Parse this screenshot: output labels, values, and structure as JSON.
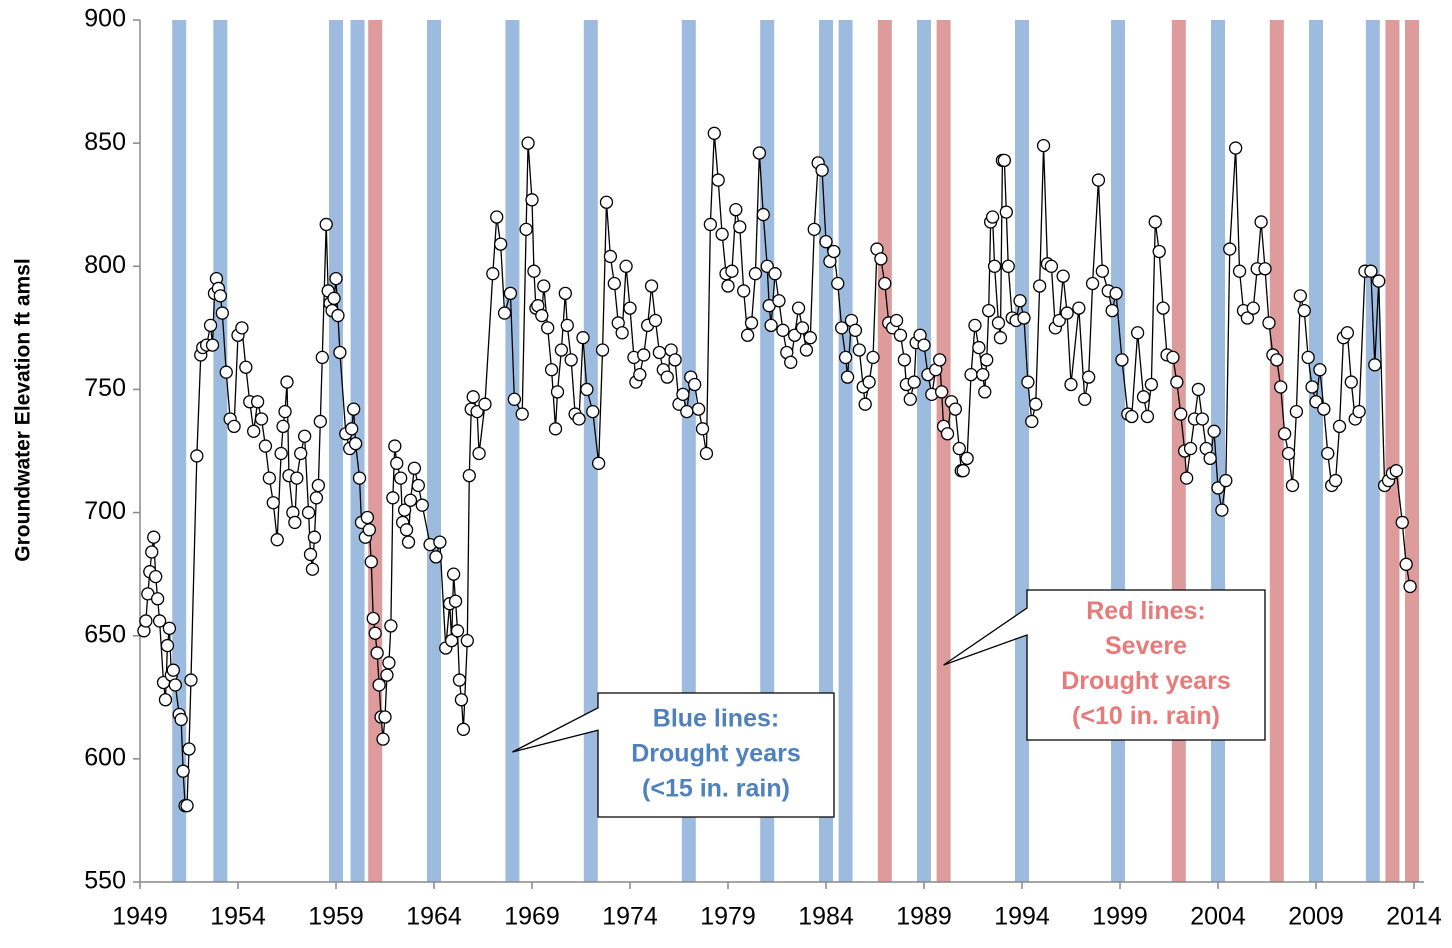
{
  "chart_data": {
    "type": "line",
    "y_label": "Groundwater Elevation ft amsl",
    "xlim": [
      1949,
      2014
    ],
    "xticks": [
      1949,
      1954,
      1959,
      1964,
      1969,
      1974,
      1979,
      1984,
      1989,
      1994,
      1999,
      2004,
      2009,
      2014
    ],
    "ylim": [
      550,
      900
    ],
    "yticks": [
      550,
      600,
      650,
      700,
      750,
      800,
      850,
      900
    ],
    "color": "#000000",
    "drought_color": "#9dbbdf",
    "severe_drought_color": "#dd9b9b",
    "drought_years": [
      1951.0,
      1953.1,
      1959.0,
      1960.1,
      1964.0,
      1968.0,
      1972.0,
      1977.0,
      1981.0,
      1984.0,
      1985.0,
      1989.0,
      1994.0,
      1998.9,
      2004.0,
      2009.0,
      2011.9
    ],
    "severe_drought_years": [
      1961.0,
      1987.0,
      1990.0,
      2002.0,
      2007.0,
      2012.9,
      2013.9
    ],
    "annotations": [
      {
        "lines": [
          "Blue lines:",
          "Drought years",
          "(<15 in. rain)"
        ],
        "color": "#4f81bd"
      },
      {
        "lines": [
          "Red lines:",
          "Severe",
          "Drought years",
          "(<10 in. rain)"
        ],
        "color": "#e87a7a"
      }
    ],
    "x": [
      1949.2,
      1949.3,
      1949.4,
      1949.5,
      1949.6,
      1949.7,
      1949.8,
      1949.9,
      1950.0,
      1950.2,
      1950.3,
      1950.4,
      1950.5,
      1950.6,
      1950.7,
      1950.8,
      1951.0,
      1951.1,
      1951.2,
      1951.3,
      1951.4,
      1951.5,
      1951.6,
      1951.9,
      1952.1,
      1952.2,
      1952.4,
      1952.6,
      1952.7,
      1952.8,
      1952.9,
      1953.0,
      1953.1,
      1953.2,
      1953.4,
      1953.6,
      1953.8,
      1954.0,
      1954.2,
      1954.4,
      1954.6,
      1954.8,
      1955.0,
      1955.2,
      1955.4,
      1955.6,
      1955.8,
      1956.0,
      1956.2,
      1956.3,
      1956.4,
      1956.5,
      1956.6,
      1956.8,
      1956.9,
      1957.0,
      1957.2,
      1957.4,
      1957.6,
      1957.7,
      1957.8,
      1957.9,
      1958.0,
      1958.1,
      1958.2,
      1958.3,
      1958.5,
      1958.6,
      1958.7,
      1958.8,
      1958.9,
      1959.0,
      1959.1,
      1959.2,
      1959.5,
      1959.7,
      1959.8,
      1959.9,
      1960.0,
      1960.2,
      1960.3,
      1960.5,
      1960.6,
      1960.7,
      1960.8,
      1960.9,
      1961.0,
      1961.1,
      1961.2,
      1961.3,
      1961.4,
      1961.5,
      1961.6,
      1961.7,
      1961.8,
      1961.9,
      1962.0,
      1962.1,
      1962.3,
      1962.4,
      1962.5,
      1962.6,
      1962.7,
      1962.8,
      1963.0,
      1963.2,
      1963.4,
      1963.8,
      1964.1,
      1964.3,
      1964.6,
      1964.8,
      1964.9,
      1965.0,
      1965.1,
      1965.2,
      1965.3,
      1965.4,
      1965.5,
      1965.7,
      1965.8,
      1965.9,
      1966.0,
      1966.2,
      1966.3,
      1966.6,
      1967.0,
      1967.2,
      1967.4,
      1967.6,
      1967.9,
      1968.1,
      1968.5,
      1968.7,
      1968.8,
      1969.0,
      1969.1,
      1969.2,
      1969.3,
      1969.5,
      1969.6,
      1969.8,
      1970.0,
      1970.2,
      1970.3,
      1970.5,
      1970.7,
      1970.8,
      1971.0,
      1971.2,
      1971.4,
      1971.6,
      1971.8,
      1972.1,
      1972.4,
      1972.6,
      1972.8,
      1973.0,
      1973.2,
      1973.4,
      1973.6,
      1973.8,
      1974.0,
      1974.2,
      1974.3,
      1974.5,
      1974.7,
      1974.9,
      1975.1,
      1975.3,
      1975.5,
      1975.7,
      1975.9,
      1976.1,
      1976.3,
      1976.5,
      1976.7,
      1976.9,
      1977.1,
      1977.3,
      1977.5,
      1977.7,
      1977.9,
      1978.1,
      1978.3,
      1978.5,
      1978.7,
      1978.9,
      1979.0,
      1979.2,
      1979.4,
      1979.6,
      1979.8,
      1980.0,
      1980.2,
      1980.4,
      1980.6,
      1980.8,
      1981.0,
      1981.1,
      1981.2,
      1981.4,
      1981.6,
      1981.8,
      1982.0,
      1982.2,
      1982.4,
      1982.6,
      1982.8,
      1983.0,
      1983.2,
      1983.4,
      1983.6,
      1983.8,
      1984.0,
      1984.2,
      1984.4,
      1984.6,
      1984.8,
      1985.0,
      1985.1,
      1985.3,
      1985.5,
      1985.7,
      1985.9,
      1986.0,
      1986.2,
      1986.4,
      1986.6,
      1986.8,
      1987.0,
      1987.2,
      1987.4,
      1987.6,
      1987.8,
      1988.0,
      1988.1,
      1988.3,
      1988.5,
      1988.6,
      1988.8,
      1989.0,
      1989.2,
      1989.4,
      1989.6,
      1989.8,
      1989.9,
      1990.0,
      1990.2,
      1990.4,
      1990.6,
      1990.8,
      1990.9,
      1991.0,
      1991.2,
      1991.4,
      1991.6,
      1991.8,
      1992.0,
      1992.1,
      1992.2,
      1992.3,
      1992.4,
      1992.5,
      1992.6,
      1992.8,
      1992.9,
      1993.0,
      1993.1,
      1993.2,
      1993.3,
      1993.5,
      1993.7,
      1993.9,
      1994.1,
      1994.3,
      1994.5,
      1994.7,
      1994.9,
      1995.1,
      1995.3,
      1995.5,
      1995.7,
      1995.9,
      1996.1,
      1996.3,
      1996.5,
      1996.9,
      1997.2,
      1997.4,
      1997.6,
      1997.9,
      1998.1,
      1998.4,
      1998.6,
      1998.8,
      1999.1,
      1999.4,
      1999.6,
      1999.9,
      2000.2,
      2000.4,
      2000.6,
      2000.8,
      2001.0,
      2001.2,
      2001.4,
      2001.7,
      2001.9,
      2002.1,
      2002.3,
      2002.4,
      2002.6,
      2002.8,
      2003.0,
      2003.2,
      2003.4,
      2003.6,
      2003.8,
      2004.0,
      2004.2,
      2004.4,
      2004.6,
      2004.9,
      2005.1,
      2005.3,
      2005.5,
      2005.8,
      2006.0,
      2006.2,
      2006.4,
      2006.6,
      2006.8,
      2007.0,
      2007.2,
      2007.4,
      2007.6,
      2007.8,
      2008.0,
      2008.2,
      2008.4,
      2008.6,
      2008.8,
      2009.0,
      2009.2,
      2009.4,
      2009.6,
      2009.8,
      2010.0,
      2010.2,
      2010.4,
      2010.6,
      2010.8,
      2011.0,
      2011.2,
      2011.5,
      2011.8,
      2012.0,
      2012.2,
      2012.5,
      2012.7,
      2012.9,
      2013.1,
      2013.4,
      2013.6,
      2013.8
    ],
    "values": [
      652,
      656,
      667,
      676,
      684,
      690,
      674,
      665,
      656,
      631,
      624,
      646,
      653,
      634,
      636,
      630,
      618,
      616,
      595,
      581,
      581,
      604,
      632,
      723,
      764,
      767,
      768,
      776,
      768,
      789,
      795,
      791,
      788,
      781,
      757,
      738,
      735,
      772,
      775,
      759,
      745,
      733,
      745,
      738,
      727,
      714,
      704,
      689,
      724,
      735,
      741,
      753,
      715,
      700,
      696,
      714,
      724,
      731,
      700,
      683,
      677,
      690,
      706,
      711,
      737,
      763,
      817,
      790,
      785,
      782,
      787,
      795,
      780,
      765,
      732,
      726,
      734,
      742,
      728,
      714,
      696,
      690,
      698,
      693,
      680,
      657,
      651,
      643,
      630,
      617,
      608,
      617,
      634,
      639,
      654,
      706,
      727,
      720,
      714,
      696,
      701,
      693,
      688,
      705,
      718,
      711,
      703,
      687,
      682,
      688,
      645,
      663,
      648,
      675,
      664,
      652,
      632,
      624,
      612,
      648,
      715,
      742,
      747,
      741,
      724,
      744,
      797,
      820,
      809,
      781,
      789,
      746,
      740,
      815,
      850,
      827,
      798,
      783,
      784,
      780,
      792,
      775,
      758,
      734,
      749,
      766,
      789,
      776,
      762,
      740,
      738,
      771,
      750,
      741,
      720,
      766,
      826,
      804,
      793,
      777,
      773,
      800,
      783,
      763,
      753,
      756,
      764,
      776,
      792,
      778,
      765,
      758,
      755,
      766,
      762,
      744,
      748,
      741,
      755,
      752,
      742,
      734,
      724,
      817,
      854,
      835,
      813,
      797,
      792,
      798,
      823,
      816,
      790,
      772,
      777,
      797,
      846,
      821,
      800,
      784,
      776,
      797,
      786,
      774,
      765,
      761,
      772,
      783,
      775,
      766,
      771,
      815,
      842,
      839,
      810,
      802,
      806,
      793,
      775,
      763,
      755,
      778,
      774,
      766,
      751,
      744,
      753,
      763,
      807,
      803,
      793,
      777,
      775,
      778,
      772,
      762,
      752,
      746,
      753,
      769,
      772,
      768,
      756,
      748,
      758,
      762,
      749,
      735,
      732,
      745,
      742,
      726,
      717,
      717,
      722,
      756,
      776,
      767,
      756,
      749,
      762,
      782,
      818,
      820,
      800,
      777,
      771,
      843,
      843,
      822,
      800,
      779,
      778,
      786,
      779,
      753,
      737,
      744,
      792,
      849,
      801,
      800,
      775,
      778,
      796,
      781,
      752,
      783,
      746,
      755,
      793,
      835,
      798,
      790,
      782,
      789,
      762,
      740,
      739,
      773,
      747,
      739,
      752,
      818,
      806,
      783,
      764,
      763,
      753,
      740,
      725,
      714,
      726,
      738,
      750,
      738,
      726,
      722,
      733,
      710,
      701,
      713,
      807,
      848,
      798,
      782,
      779,
      783,
      799,
      818,
      799,
      777,
      764,
      762,
      751,
      732,
      724,
      711,
      741,
      788,
      782,
      763,
      751,
      745,
      758,
      742,
      724,
      711,
      713,
      735,
      771,
      773,
      753,
      738,
      741,
      798,
      798,
      760,
      794,
      711,
      713,
      716,
      717,
      696,
      679,
      670
    ]
  }
}
